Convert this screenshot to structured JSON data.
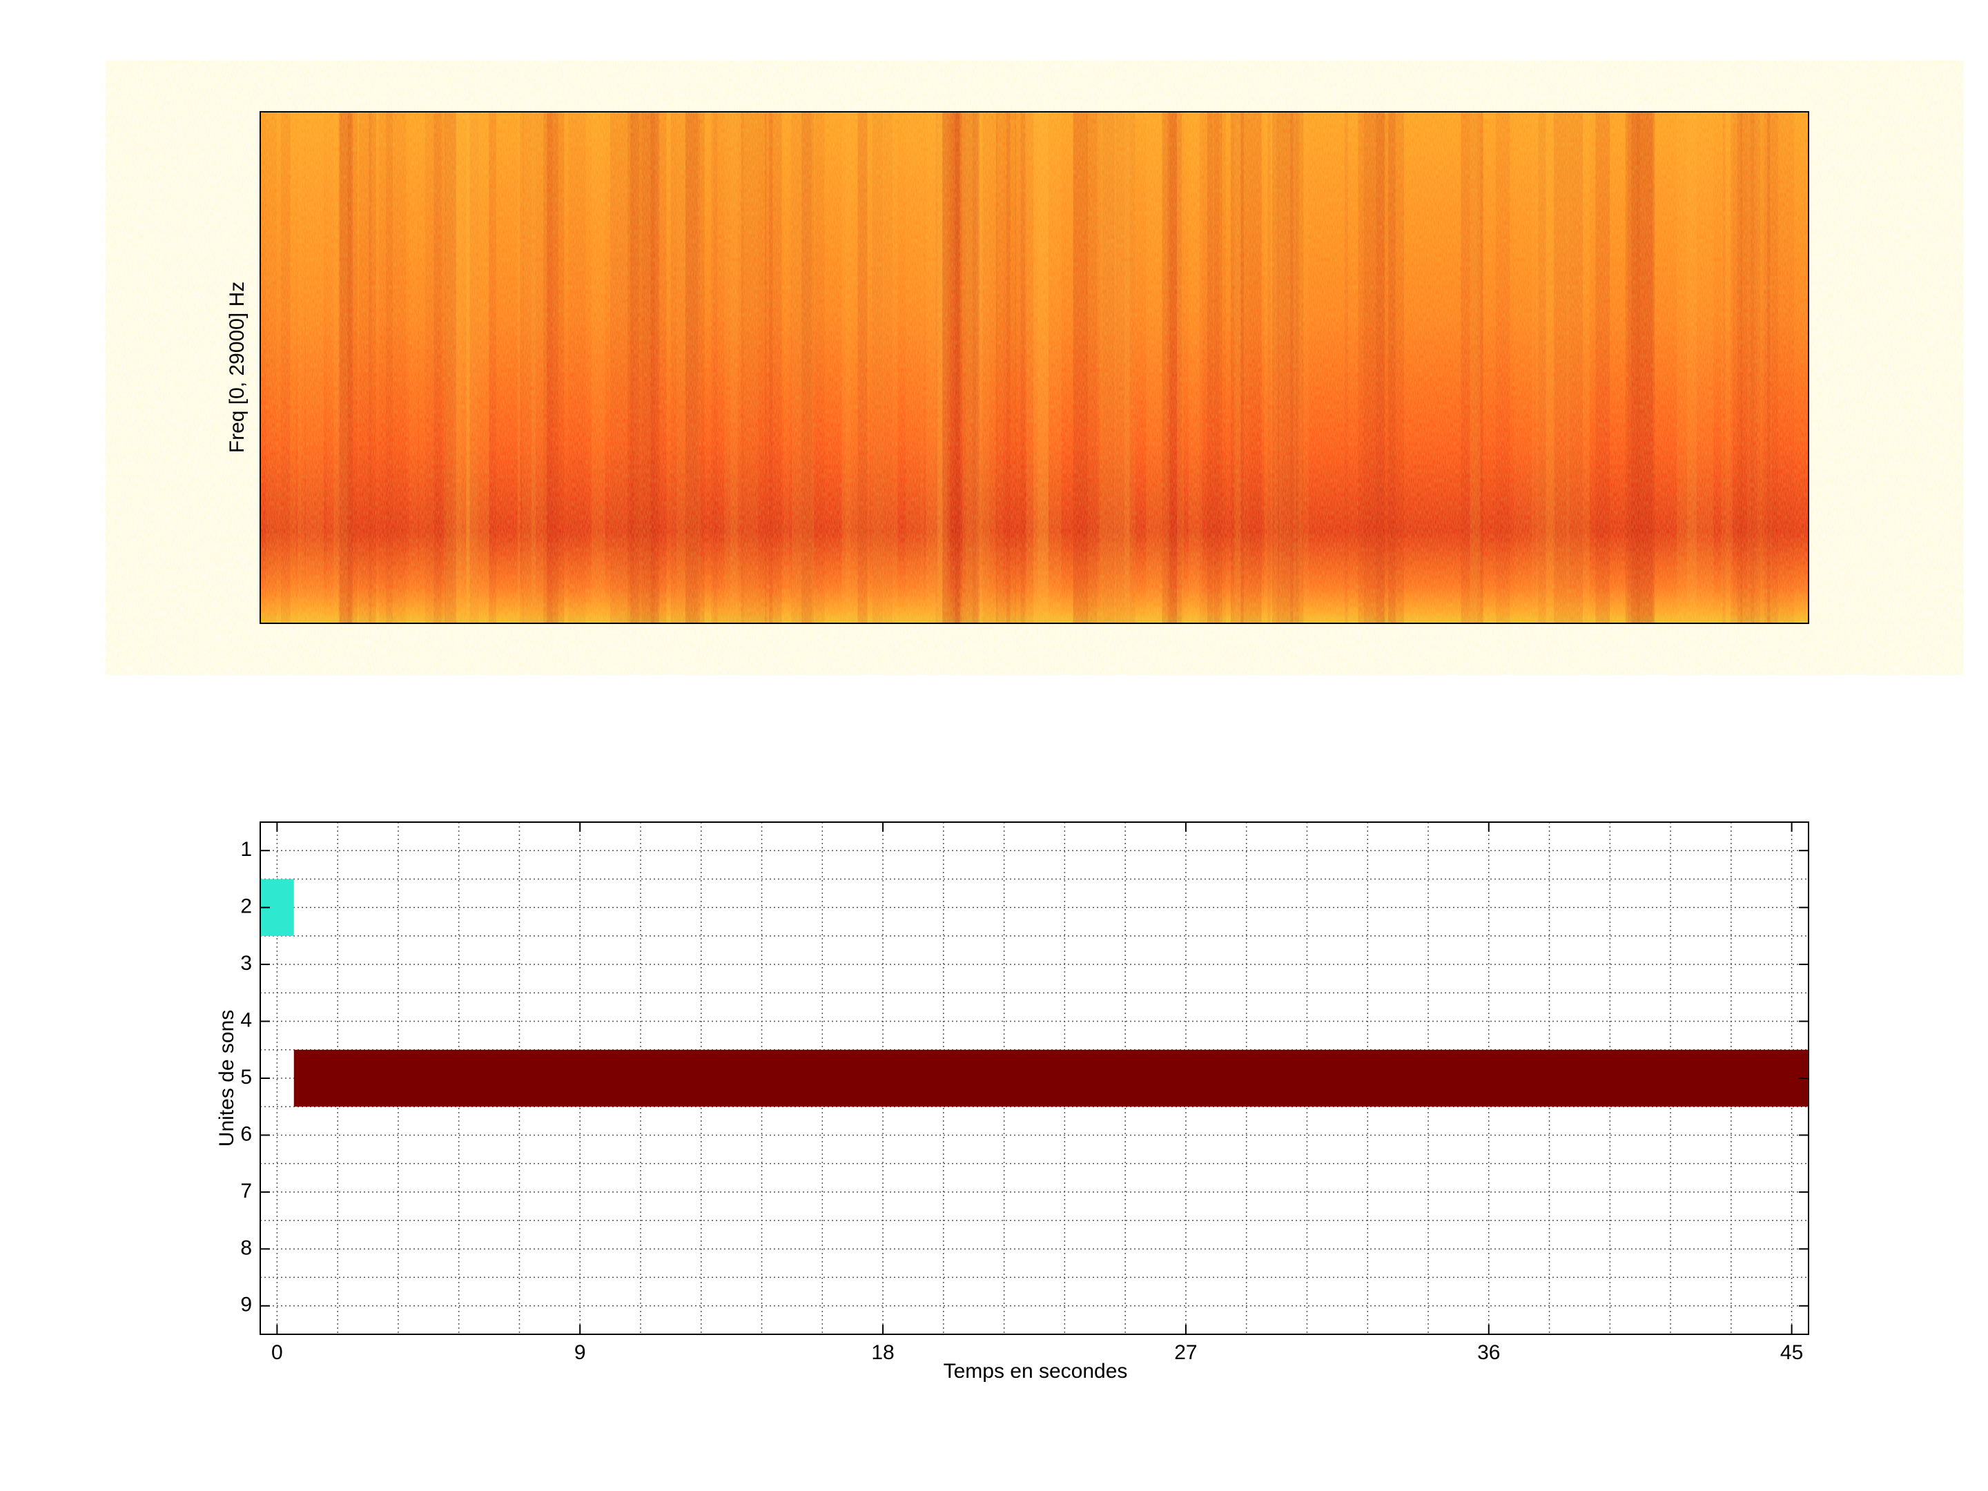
{
  "chart_data": [
    {
      "type": "spectrogram",
      "ylabel": "Freq [0, 29000] Hz"
    },
    {
      "type": "timeline",
      "xlabel": "Temps en secondes",
      "ylabel": "Unites de sons",
      "xlim": [
        -0.5,
        45.5
      ],
      "xticks": [
        0,
        9,
        18,
        27,
        36,
        45
      ],
      "xgrid": [
        0,
        1.8,
        3.6,
        5.4,
        7.2,
        9,
        10.8,
        12.6,
        14.4,
        16.2,
        18,
        19.8,
        21.6,
        23.4,
        25.2,
        27,
        28.8,
        30.6,
        32.4,
        34.2,
        36,
        37.8,
        39.6,
        41.4,
        43.2,
        45
      ],
      "ylim": [
        0.5,
        9.5
      ],
      "yticks": [
        1,
        2,
        3,
        4,
        5,
        6,
        7,
        8,
        9
      ],
      "ygrid": [
        1,
        1.5,
        2,
        2.5,
        3,
        3.5,
        4,
        4.5,
        5,
        5.5,
        6,
        6.5,
        7,
        7.5,
        8,
        8.5,
        9
      ],
      "segments": [
        {
          "unit": 2,
          "start": -0.5,
          "end": 0.5,
          "color": "#2ee8d0"
        },
        {
          "unit": 5,
          "start": 0.5,
          "end": 45.5,
          "color": "#7a0000"
        }
      ],
      "grid": true
    }
  ]
}
